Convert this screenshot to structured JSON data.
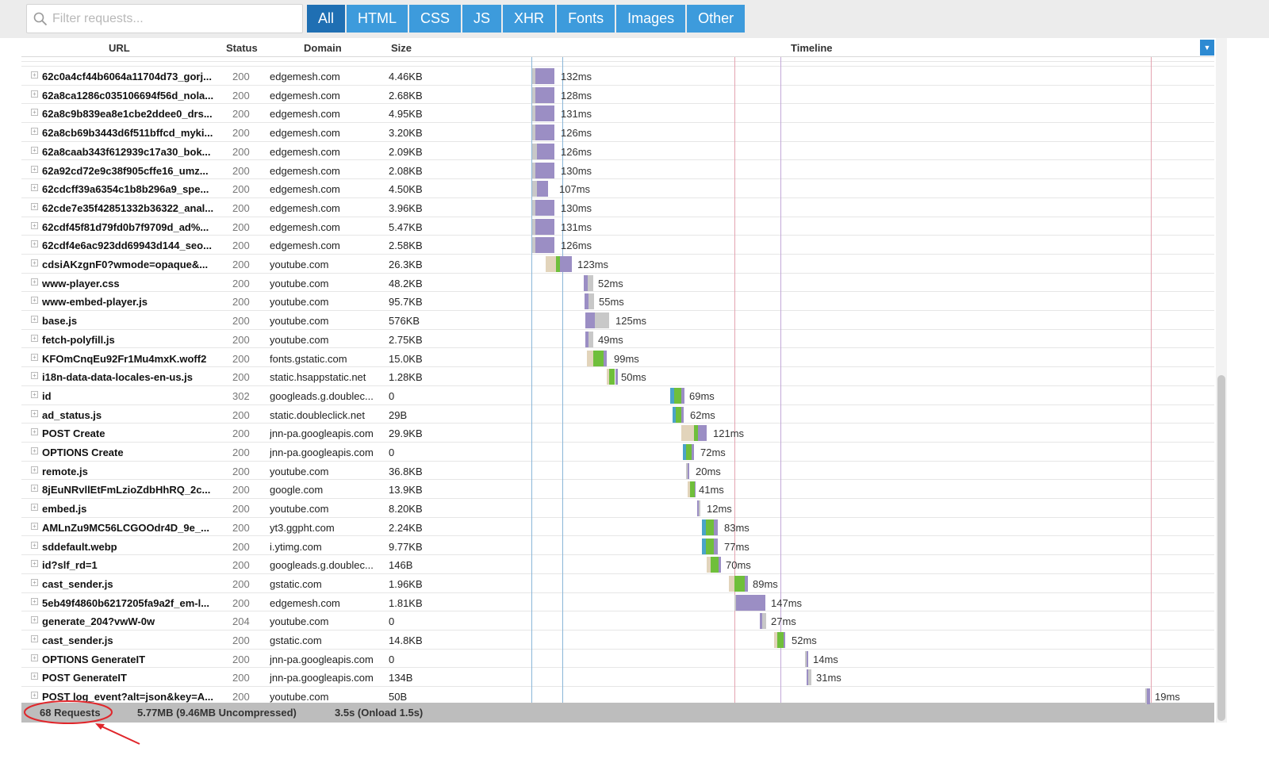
{
  "toolbar": {
    "filter_placeholder": "Filter requests...",
    "tabs": [
      {
        "label": "All",
        "active": true
      },
      {
        "label": "HTML",
        "active": false
      },
      {
        "label": "CSS",
        "active": false
      },
      {
        "label": "JS",
        "active": false
      },
      {
        "label": "XHR",
        "active": false
      },
      {
        "label": "Fonts",
        "active": false
      },
      {
        "label": "Images",
        "active": false
      },
      {
        "label": "Other",
        "active": false
      }
    ],
    "icon": "search-icon"
  },
  "table": {
    "headers": {
      "url": "URL",
      "status": "Status",
      "domain": "Domain",
      "size": "Size",
      "timeline": "Timeline"
    },
    "rows": [
      {
        "url": "62c0a4cf44b6064a11704d73_gorj...",
        "status": "200",
        "domain": "edgemesh.com",
        "size": "4.46KB",
        "duration": "132ms"
      },
      {
        "url": "62a8ca1286c035106694f56d_nola...",
        "status": "200",
        "domain": "edgemesh.com",
        "size": "2.68KB",
        "duration": "128ms"
      },
      {
        "url": "62a8c9b839ea8e1cbe2ddee0_drs...",
        "status": "200",
        "domain": "edgemesh.com",
        "size": "4.95KB",
        "duration": "131ms"
      },
      {
        "url": "62a8cb69b3443d6f511bffcd_myki...",
        "status": "200",
        "domain": "edgemesh.com",
        "size": "3.20KB",
        "duration": "126ms"
      },
      {
        "url": "62a8caab343f612939c17a30_bok...",
        "status": "200",
        "domain": "edgemesh.com",
        "size": "2.09KB",
        "duration": "126ms"
      },
      {
        "url": "62a92cd72e9c38f905cffe16_umz...",
        "status": "200",
        "domain": "edgemesh.com",
        "size": "2.08KB",
        "duration": "130ms"
      },
      {
        "url": "62cdcff39a6354c1b8b296a9_spe...",
        "status": "200",
        "domain": "edgemesh.com",
        "size": "4.50KB",
        "duration": "107ms"
      },
      {
        "url": "62cde7e35f42851332b36322_anal...",
        "status": "200",
        "domain": "edgemesh.com",
        "size": "3.96KB",
        "duration": "130ms"
      },
      {
        "url": "62cdf45f81d79fd0b7f9709d_ad%...",
        "status": "200",
        "domain": "edgemesh.com",
        "size": "5.47KB",
        "duration": "131ms"
      },
      {
        "url": "62cdf4e6ac923dd69943d144_seo...",
        "status": "200",
        "domain": "edgemesh.com",
        "size": "2.58KB",
        "duration": "126ms"
      },
      {
        "url": "cdsiAKzgnF0?wmode=opaque&...",
        "status": "200",
        "domain": "youtube.com",
        "size": "26.3KB",
        "duration": "123ms"
      },
      {
        "url": "www-player.css",
        "status": "200",
        "domain": "youtube.com",
        "size": "48.2KB",
        "duration": "52ms"
      },
      {
        "url": "www-embed-player.js",
        "status": "200",
        "domain": "youtube.com",
        "size": "95.7KB",
        "duration": "55ms"
      },
      {
        "url": "base.js",
        "status": "200",
        "domain": "youtube.com",
        "size": "576KB",
        "duration": "125ms"
      },
      {
        "url": "fetch-polyfill.js",
        "status": "200",
        "domain": "youtube.com",
        "size": "2.75KB",
        "duration": "49ms"
      },
      {
        "url": "KFOmCnqEu92Fr1Mu4mxK.woff2",
        "status": "200",
        "domain": "fonts.gstatic.com",
        "size": "15.0KB",
        "duration": "99ms"
      },
      {
        "url": "i18n-data-data-locales-en-us.js",
        "status": "200",
        "domain": "static.hsappstatic.net",
        "size": "1.28KB",
        "duration": "50ms"
      },
      {
        "url": "id",
        "status": "302",
        "domain": "googleads.g.doublec...",
        "size": "0",
        "duration": "69ms"
      },
      {
        "url": "ad_status.js",
        "status": "200",
        "domain": "static.doubleclick.net",
        "size": "29B",
        "duration": "62ms"
      },
      {
        "url": "POST Create",
        "status": "200",
        "domain": "jnn-pa.googleapis.com",
        "size": "29.9KB",
        "duration": "121ms"
      },
      {
        "url": "OPTIONS Create",
        "status": "200",
        "domain": "jnn-pa.googleapis.com",
        "size": "0",
        "duration": "72ms"
      },
      {
        "url": "remote.js",
        "status": "200",
        "domain": "youtube.com",
        "size": "36.8KB",
        "duration": "20ms"
      },
      {
        "url": "8jEuNRvllEtFmLzioZdbHhRQ_2c...",
        "status": "200",
        "domain": "google.com",
        "size": "13.9KB",
        "duration": "41ms"
      },
      {
        "url": "embed.js",
        "status": "200",
        "domain": "youtube.com",
        "size": "8.20KB",
        "duration": "12ms"
      },
      {
        "url": "AMLnZu9MC56LCGOOdr4D_9e_...",
        "status": "200",
        "domain": "yt3.ggpht.com",
        "size": "2.24KB",
        "duration": "83ms"
      },
      {
        "url": "sddefault.webp",
        "status": "200",
        "domain": "i.ytimg.com",
        "size": "9.77KB",
        "duration": "77ms"
      },
      {
        "url": "id?slf_rd=1",
        "status": "200",
        "domain": "googleads.g.doublec...",
        "size": "146B",
        "duration": "70ms"
      },
      {
        "url": "cast_sender.js",
        "status": "200",
        "domain": "gstatic.com",
        "size": "1.96KB",
        "duration": "89ms"
      },
      {
        "url": "5eb49f4860b6217205fa9a2f_em-l...",
        "status": "200",
        "domain": "edgemesh.com",
        "size": "1.81KB",
        "duration": "147ms"
      },
      {
        "url": "generate_204?vwW-0w",
        "status": "204",
        "domain": "youtube.com",
        "size": "0",
        "duration": "27ms"
      },
      {
        "url": "cast_sender.js",
        "status": "200",
        "domain": "gstatic.com",
        "size": "14.8KB",
        "duration": "52ms"
      },
      {
        "url": "OPTIONS GenerateIT",
        "status": "200",
        "domain": "jnn-pa.googleapis.com",
        "size": "0",
        "duration": "14ms"
      },
      {
        "url": "POST GenerateIT",
        "status": "200",
        "domain": "jnn-pa.googleapis.com",
        "size": "134B",
        "duration": "31ms"
      },
      {
        "url": "POST log_event?alt=json&key=A...",
        "status": "200",
        "domain": "youtube.com",
        "size": "50B",
        "duration": "19ms"
      }
    ]
  },
  "footer": {
    "requests": "68 Requests",
    "transfer": "5.77MB  (9.46MB Uncompressed)",
    "time": "3.5s  (Onload 1.5s)"
  },
  "colors": {
    "tab": "#3d9bdc",
    "tab_active": "#1f6fb3",
    "bar_receive": "#9b8ec4",
    "bar_wait": "#c8c8c8",
    "bar_connect": "#e2d4bb",
    "bar_ssl": "#6fbf3b",
    "bar_dns": "#4aa4c8",
    "annotation": "#e0262b"
  }
}
